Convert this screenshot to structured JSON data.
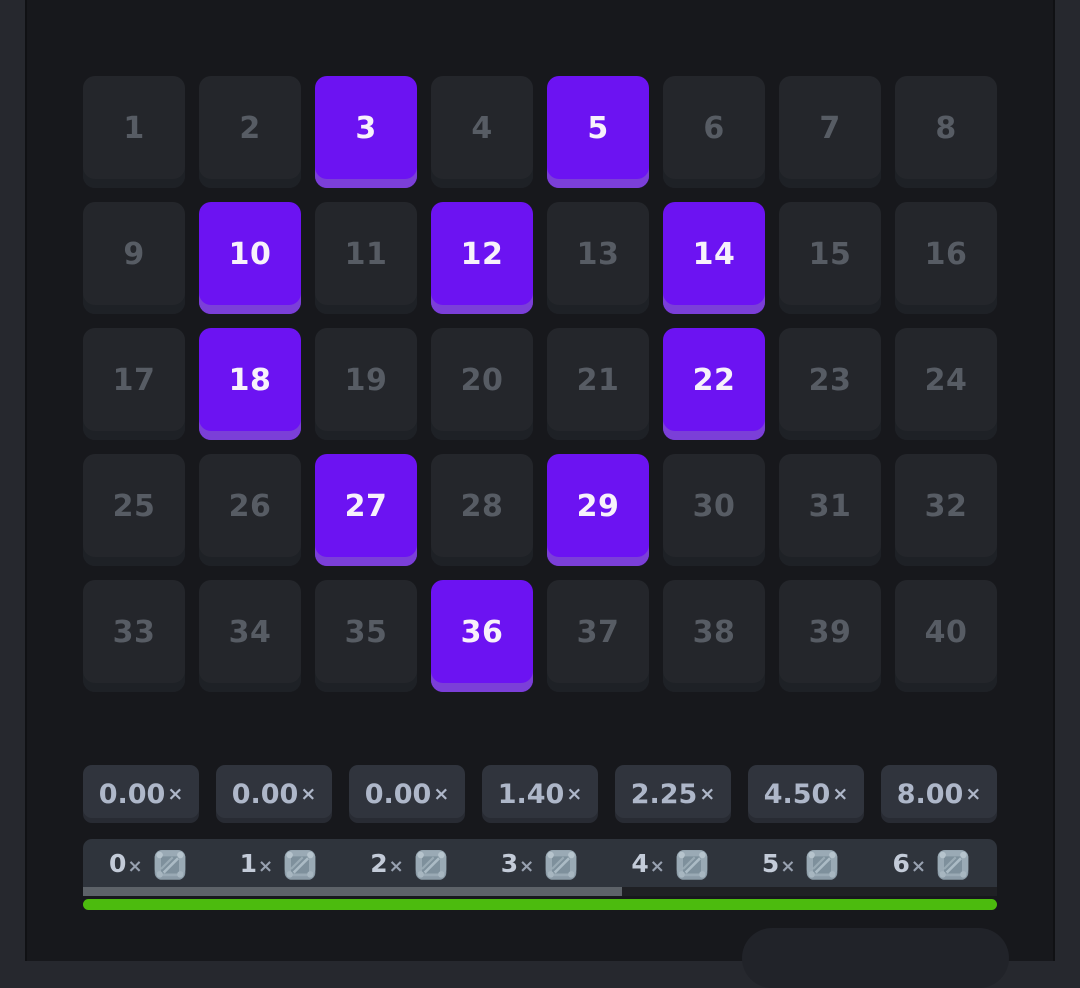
{
  "game": "keno-board",
  "colors": {
    "page_bg": "#26282e",
    "board_bg": "#17181c",
    "tile_bg": "#24262b",
    "tile_edge": "#1e2126",
    "tile_text": "#575c64",
    "selected_bg": "#6c13f2",
    "selected_edge": "#7b3fd8",
    "selected_text": "#f7f1fb",
    "button_bg": "#30343d",
    "button_text": "#aeb7c9",
    "hits_bar_bg": "#2f343c",
    "hits_text": "#c3cbd8",
    "progress_fill": "#5d6268",
    "green_bar": "#4cbb0e",
    "gem_base": "#97a7b3",
    "bottom_panel_bg": "#212329"
  },
  "keno_grid": {
    "numbers": [
      1,
      2,
      3,
      4,
      5,
      6,
      7,
      8,
      9,
      10,
      11,
      12,
      13,
      14,
      15,
      16,
      17,
      18,
      19,
      20,
      21,
      22,
      23,
      24,
      25,
      26,
      27,
      28,
      29,
      30,
      31,
      32,
      33,
      34,
      35,
      36,
      37,
      38,
      39,
      40
    ],
    "selected_numbers": [
      3,
      5,
      10,
      12,
      14,
      18,
      22,
      27,
      29,
      36
    ]
  },
  "payout_multipliers": {
    "suffix": "×",
    "values": [
      "0.00",
      "0.00",
      "0.00",
      "1.40",
      "2.25",
      "4.50",
      "8.00"
    ]
  },
  "hit_counts": {
    "suffix": "×",
    "icon": "gem-icon",
    "values": [
      "0",
      "1",
      "2",
      "3",
      "4",
      "5",
      "6"
    ]
  },
  "progress": {
    "upper_fill_percent": 59,
    "lower_fill_percent": 100
  }
}
